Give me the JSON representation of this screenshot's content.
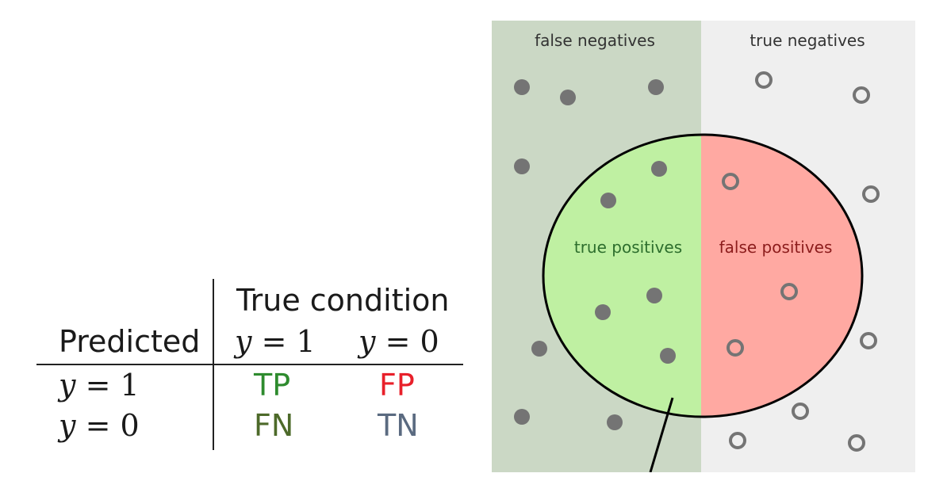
{
  "confusion_table": {
    "header_true_condition": "True condition",
    "header_predicted": "Predicted",
    "col_y1": {
      "var": "y",
      "eq": "=",
      "val": "1"
    },
    "col_y0": {
      "var": "y",
      "eq": "=",
      "val": "0"
    },
    "row_y1": {
      "var": "y",
      "eq": "=",
      "val": "1"
    },
    "row_y0": {
      "var": "y",
      "eq": "=",
      "val": "0"
    },
    "tp": "TP",
    "fp": "FP",
    "fn": "FN",
    "tn": "TN",
    "colors": {
      "tp": "#2e8b2e",
      "fp": "#e8202a",
      "fn": "#4d6a2a",
      "tn": "#5a6a80"
    }
  },
  "venn": {
    "label_false_negatives": "false negatives",
    "label_true_negatives": "true negatives",
    "label_true_positives": "true positives",
    "label_false_positives": "false positives",
    "colors": {
      "relevant_bg": "#cbd8c5",
      "irrelevant_bg": "#efefef",
      "true_positive_fill": "#bff0a2",
      "false_positive_fill": "#ffa9a2",
      "label_negatives": "#333333",
      "label_true_positives": "#2d6e2d",
      "label_false_positives": "#8c1c1c",
      "dot": "#747474"
    }
  }
}
